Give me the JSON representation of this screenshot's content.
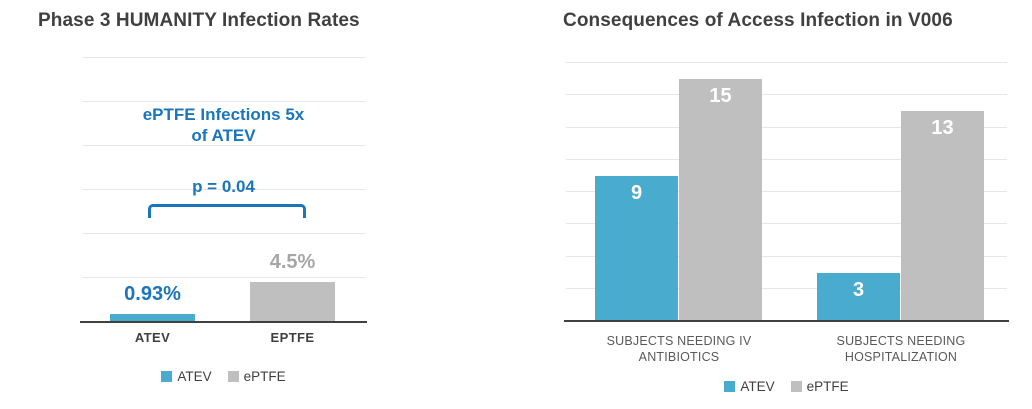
{
  "colors": {
    "atev": "#49ABCE",
    "eptfe": "#BFBFBF",
    "accent_blue": "#1B75BC",
    "title_gray": "#404040",
    "axis_line": "#404040",
    "category_label_gray": "#595959",
    "value_gray": "#A6A6A6",
    "bar_value_white": "#FFFFFF",
    "gridline": "#E6E6E6"
  },
  "chart_data": [
    {
      "id": "phase3-humanity-infection-rates",
      "type": "bar",
      "title": "Phase 3 HUMANITY Infection Rates",
      "categories": [
        "ATEV",
        "EPTFE"
      ],
      "values": [
        0.93,
        4.5
      ],
      "value_labels": [
        "0.93%",
        "4.5%"
      ],
      "bar_colors": [
        "atev",
        "eptfe"
      ],
      "value_label_colors": [
        "accent_blue",
        "value_gray"
      ],
      "xlabel": "",
      "ylabel": "",
      "ylim": [
        0,
        30
      ],
      "gridline_step": 5,
      "grid": true,
      "y_axis_labels": "none",
      "annotation": {
        "text": "ePTFE Infections 5x\nof ATEV",
        "p_value": "p = 0.04",
        "bracket": true
      },
      "legend": {
        "position": "bottom",
        "items": [
          {
            "label": "ATEV",
            "color": "atev"
          },
          {
            "label": "ePTFE",
            "color": "eptfe"
          }
        ]
      }
    },
    {
      "id": "consequences-of-access-infection-v006",
      "type": "bar",
      "title": "Consequences of Access Infection in V006",
      "categories": [
        "SUBJECTS NEEDING IV ANTIBIOTICS",
        "SUBJECTS NEEDING HOSPITALIZATION"
      ],
      "series": [
        {
          "name": "ATEV",
          "color": "atev",
          "values": [
            9,
            3
          ]
        },
        {
          "name": "ePTFE",
          "color": "eptfe",
          "values": [
            15,
            13
          ]
        }
      ],
      "bar_value_color": "bar_value_white",
      "xlabel": "",
      "ylabel": "",
      "ylim": [
        0,
        16
      ],
      "gridline_step": 2,
      "grid": true,
      "y_axis_labels": "none",
      "legend": {
        "position": "bottom",
        "items": [
          {
            "label": "ATEV",
            "color": "atev"
          },
          {
            "label": "ePTFE",
            "color": "eptfe"
          }
        ]
      }
    }
  ]
}
